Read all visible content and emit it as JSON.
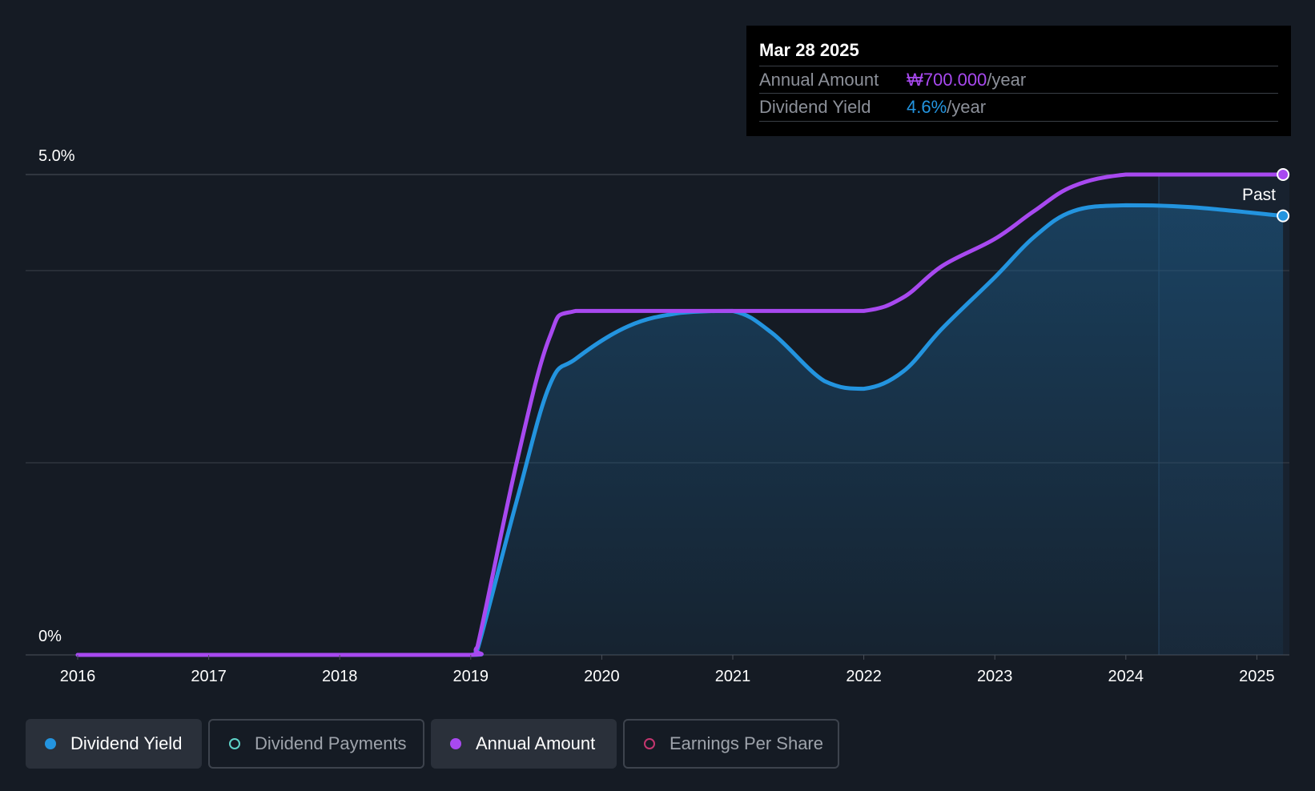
{
  "colors": {
    "background": "#151b24",
    "yield": "#2394df",
    "annual": "#a849f0",
    "payments": "#5fd3c8",
    "eps": "#c4366f",
    "grid": "#3a404a"
  },
  "tooltip": {
    "date": "Mar 28 2025",
    "rows": [
      {
        "label": "Annual Amount",
        "value": "₩700.000",
        "suffix": "/year"
      },
      {
        "label": "Dividend Yield",
        "value": "4.6%",
        "suffix": "/year"
      }
    ]
  },
  "legend": [
    {
      "label": "Dividend Yield",
      "active": true,
      "color": "#2394df"
    },
    {
      "label": "Dividend Payments",
      "active": false,
      "color": "#5fd3c8"
    },
    {
      "label": "Annual Amount",
      "active": true,
      "color": "#a849f0"
    },
    {
      "label": "Earnings Per Share",
      "active": false,
      "color": "#c4366f"
    }
  ],
  "chart_data": {
    "type": "area",
    "x_tick_labels": [
      "2016",
      "2017",
      "2018",
      "2019",
      "2020",
      "2021",
      "2022",
      "2023",
      "2024",
      "2025"
    ],
    "y_tick_labels": [
      "5.0%",
      "0%"
    ],
    "ylim": [
      0,
      5.0
    ],
    "past_label": "Past",
    "series": [
      {
        "name": "Dividend Yield",
        "points": [
          [
            2016.0,
            0
          ],
          [
            2017.0,
            0
          ],
          [
            2018.0,
            0
          ],
          [
            2019.0,
            0
          ],
          [
            2019.05,
            0.05
          ],
          [
            2019.35,
            1.6
          ],
          [
            2019.6,
            2.8
          ],
          [
            2019.8,
            3.08
          ],
          [
            2020.2,
            3.42
          ],
          [
            2020.6,
            3.56
          ],
          [
            2021.0,
            3.58
          ],
          [
            2021.3,
            3.35
          ],
          [
            2021.7,
            2.85
          ],
          [
            2022.0,
            2.77
          ],
          [
            2022.3,
            2.95
          ],
          [
            2022.6,
            3.4
          ],
          [
            2023.0,
            3.93
          ],
          [
            2023.3,
            4.35
          ],
          [
            2023.6,
            4.62
          ],
          [
            2024.0,
            4.68
          ],
          [
            2024.5,
            4.66
          ],
          [
            2025.2,
            4.57
          ]
        ]
      },
      {
        "name": "Annual Amount",
        "points": [
          [
            2016.0,
            0
          ],
          [
            2017.0,
            0
          ],
          [
            2018.0,
            0
          ],
          [
            2019.0,
            0
          ],
          [
            2019.05,
            0.08
          ],
          [
            2019.35,
            2.0
          ],
          [
            2019.6,
            3.3
          ],
          [
            2019.8,
            3.58
          ],
          [
            2020.5,
            3.58
          ],
          [
            2021.0,
            3.58
          ],
          [
            2021.5,
            3.58
          ],
          [
            2022.0,
            3.58
          ],
          [
            2022.3,
            3.72
          ],
          [
            2022.6,
            4.05
          ],
          [
            2023.0,
            4.33
          ],
          [
            2023.3,
            4.62
          ],
          [
            2023.6,
            4.88
          ],
          [
            2024.0,
            5.0
          ],
          [
            2024.5,
            5.0
          ],
          [
            2025.2,
            5.0
          ]
        ]
      }
    ]
  }
}
